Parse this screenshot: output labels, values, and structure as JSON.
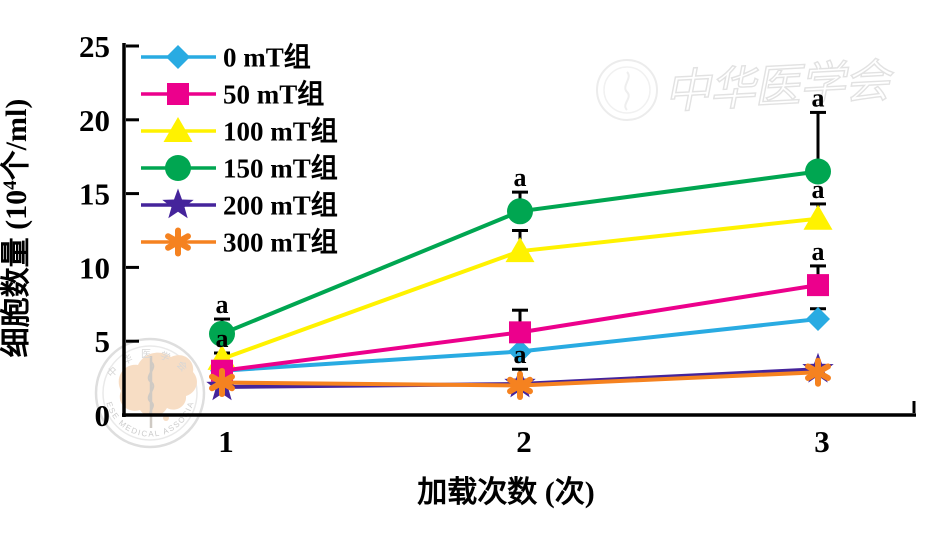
{
  "chart_data": {
    "type": "line",
    "title": "",
    "xlabel": "加载次数 (次)",
    "ylabel": "细胞数量 (10⁴个/ml)",
    "ylabel_prefix": "细胞数量 (10",
    "ylabel_sup": "4",
    "ylabel_suffix": "个/ml)",
    "x": [
      1,
      2,
      3
    ],
    "xtick_labels": [
      "1",
      "2",
      "3"
    ],
    "yticks": [
      0,
      5,
      10,
      15,
      20,
      25
    ],
    "ylim": [
      0,
      25
    ],
    "grid": false,
    "legend_position": "top-left",
    "significance_label": "a",
    "series": [
      {
        "name": "0 mT组",
        "marker": "diamond",
        "color": "#29abe2",
        "values": [
          3.0,
          4.3,
          6.5
        ],
        "errors_plus": [
          0,
          0,
          0.7
        ],
        "significance": [
          "",
          "",
          ""
        ]
      },
      {
        "name": "50 mT组",
        "marker": "square",
        "color": "#ec008c",
        "values": [
          3.0,
          5.6,
          8.8
        ],
        "errors_plus": [
          0,
          1.5,
          1.3
        ],
        "significance": [
          "",
          "",
          "a"
        ]
      },
      {
        "name": "100 mT组",
        "marker": "triangle",
        "color": "#fff200",
        "values": [
          3.8,
          11.1,
          13.3
        ],
        "errors_plus": [
          0.4,
          1.4,
          1.0
        ],
        "significance": [
          "a",
          "",
          "a"
        ]
      },
      {
        "name": "150 mT组",
        "marker": "circle",
        "color": "#00a651",
        "values": [
          5.5,
          13.8,
          16.5
        ],
        "errors_plus": [
          1.0,
          1.3,
          4.0
        ],
        "significance": [
          "a",
          "a",
          "a"
        ]
      },
      {
        "name": "200 mT组",
        "marker": "star",
        "color": "#45249b",
        "values": [
          1.9,
          2.1,
          3.1
        ],
        "errors_plus": [
          0,
          0,
          0
        ],
        "significance": [
          "",
          "",
          ""
        ]
      },
      {
        "name": "300 mT组",
        "marker": "asterisk",
        "color": "#f58220",
        "values": [
          2.2,
          2.0,
          2.9
        ],
        "errors_plus": [
          0,
          1.1,
          0
        ],
        "significance": [
          "",
          "a",
          ""
        ]
      }
    ],
    "draw_order": [
      0,
      2,
      1,
      3,
      4,
      5
    ]
  },
  "watermarks": {
    "bottom_left_logo": {
      "text_top": "中华医学会",
      "text_arc": "CHINESE MEDICAL ASSOCIATION"
    },
    "top_right": {
      "script_text": "中华医学会"
    }
  }
}
